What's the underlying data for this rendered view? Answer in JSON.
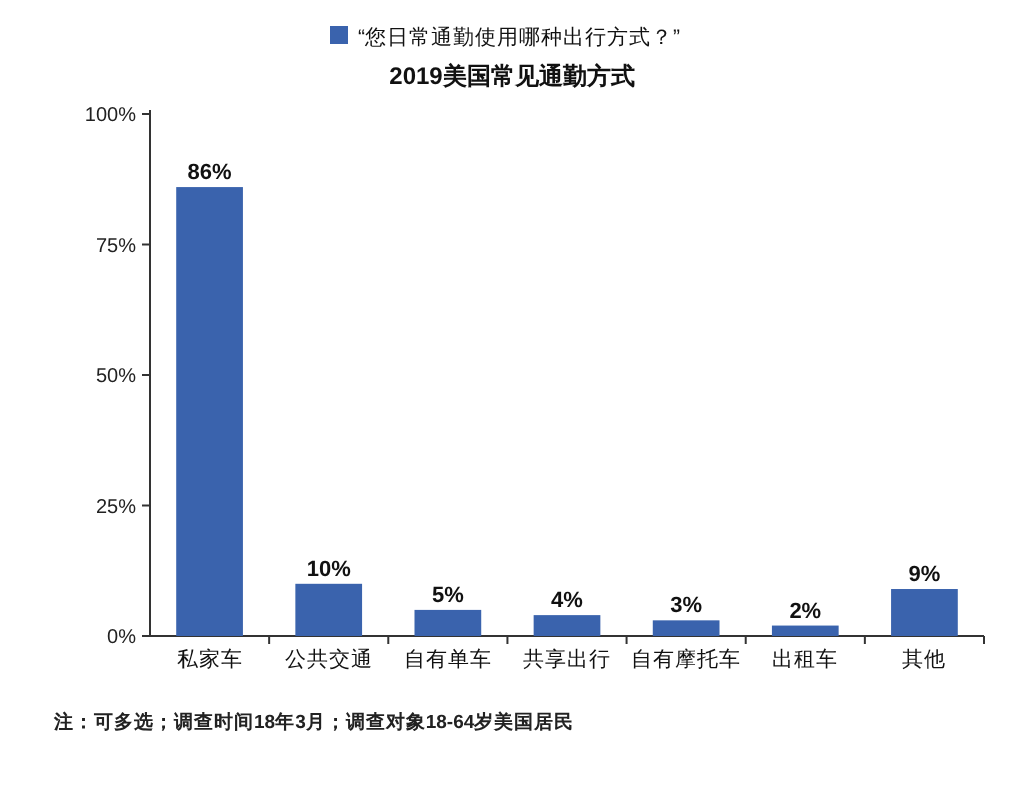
{
  "chart_data": {
    "type": "bar",
    "title": "2019美国常见通勤方式",
    "categories": [
      "私家车",
      "公共交通",
      "自有单车",
      "共享出行",
      "自有摩托车",
      "出租车",
      "其他"
    ],
    "series": [
      {
        "name": "“您日常通勤使用哪种出行方式？”",
        "color": "#3a63ad",
        "values": [
          86,
          10,
          5,
          4,
          3,
          2,
          9
        ],
        "value_labels": [
          "86%",
          "10%",
          "5%",
          "4%",
          "3%",
          "2%",
          "9%"
        ]
      }
    ],
    "ylim": [
      0,
      100
    ],
    "yticks": [
      {
        "value": 0,
        "label": "0%"
      },
      {
        "value": 25,
        "label": "25%"
      },
      {
        "value": 50,
        "label": "50%"
      },
      {
        "value": 75,
        "label": "75%"
      },
      {
        "value": 100,
        "label": "100%"
      }
    ],
    "legend": "top",
    "annotations": [
      "注：可多选；调查时间18年3月；调查对象18-64岁美国居民"
    ]
  }
}
